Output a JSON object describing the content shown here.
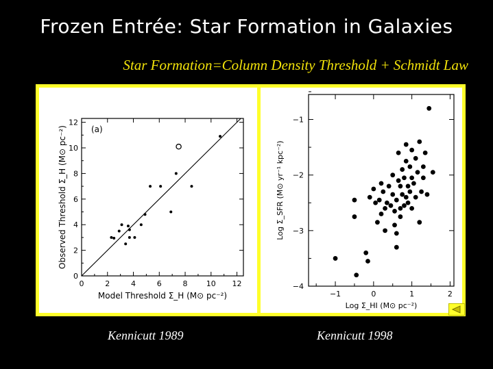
{
  "slide": {
    "title": "Frozen Entrée: Star Formation in Galaxies",
    "subtitle": "Star Formation=Column Density Threshold + Schmidt Law",
    "captions": [
      "Kennicutt 1989",
      "Kennicutt 1998"
    ],
    "nav_icon": "back-arrow-icon"
  },
  "chart_data": [
    {
      "type": "scatter",
      "panel_label": "(a)",
      "xlabel": "Model Threshold Σ_H (M⊙ pc⁻²)",
      "ylabel": "Observed Threshold Σ_H (M⊙ pc⁻²)",
      "xlim": [
        0,
        12.5
      ],
      "ylim": [
        0,
        12.3
      ],
      "xticks": [
        0,
        2,
        4,
        6,
        8,
        10,
        12
      ],
      "yticks": [
        0,
        2,
        4,
        6,
        8,
        10,
        12
      ],
      "reference_line": "y = x",
      "points": [
        {
          "x": 2.3,
          "y": 3.0
        },
        {
          "x": 2.5,
          "y": 2.95
        },
        {
          "x": 2.9,
          "y": 3.5
        },
        {
          "x": 3.1,
          "y": 4.0
        },
        {
          "x": 3.4,
          "y": 2.5
        },
        {
          "x": 3.6,
          "y": 3.9
        },
        {
          "x": 3.7,
          "y": 3.0
        },
        {
          "x": 3.7,
          "y": 3.6
        },
        {
          "x": 4.1,
          "y": 3.0
        },
        {
          "x": 4.6,
          "y": 4.0
        },
        {
          "x": 4.9,
          "y": 4.8
        },
        {
          "x": 5.3,
          "y": 7.0
        },
        {
          "x": 6.1,
          "y": 7.0
        },
        {
          "x": 6.9,
          "y": 5.0
        },
        {
          "x": 7.3,
          "y": 8.0
        },
        {
          "x": 8.5,
          "y": 7.0
        },
        {
          "x": 10.7,
          "y": 10.9
        }
      ],
      "open_points": [
        {
          "x": 7.5,
          "y": 10.1
        }
      ]
    },
    {
      "type": "scatter",
      "xlabel": "Log Σ_HI (M⊙ pc⁻²)",
      "ylabel": "Log Σ_SFR (M⊙ yr⁻¹ kpc⁻²)",
      "xlim": [
        -1.7,
        2.1
      ],
      "ylim": [
        -4.0,
        -0.55
      ],
      "xticks": [
        -1,
        0,
        1,
        2
      ],
      "yticks": [
        -1,
        -2,
        -3,
        -4
      ],
      "points": [
        {
          "x": -1.0,
          "y": -3.5
        },
        {
          "x": -0.5,
          "y": -2.45
        },
        {
          "x": -0.5,
          "y": -2.75
        },
        {
          "x": -0.45,
          "y": -3.8
        },
        {
          "x": -0.2,
          "y": -3.4
        },
        {
          "x": -0.15,
          "y": -3.55
        },
        {
          "x": -0.1,
          "y": -2.4
        },
        {
          "x": 0.0,
          "y": -2.25
        },
        {
          "x": 0.05,
          "y": -2.5
        },
        {
          "x": 0.1,
          "y": -2.85
        },
        {
          "x": 0.15,
          "y": -2.45
        },
        {
          "x": 0.2,
          "y": -2.15
        },
        {
          "x": 0.2,
          "y": -2.7
        },
        {
          "x": 0.25,
          "y": -2.3
        },
        {
          "x": 0.3,
          "y": -2.6
        },
        {
          "x": 0.3,
          "y": -3.0
        },
        {
          "x": 0.35,
          "y": -2.5
        },
        {
          "x": 0.4,
          "y": -2.2
        },
        {
          "x": 0.45,
          "y": -2.55
        },
        {
          "x": 0.5,
          "y": -2.0
        },
        {
          "x": 0.5,
          "y": -2.35
        },
        {
          "x": 0.55,
          "y": -2.65
        },
        {
          "x": 0.55,
          "y": -2.9
        },
        {
          "x": 0.6,
          "y": -2.45
        },
        {
          "x": 0.6,
          "y": -3.3
        },
        {
          "x": 0.6,
          "y": -3.05
        },
        {
          "x": 0.65,
          "y": -1.6
        },
        {
          "x": 0.65,
          "y": -2.1
        },
        {
          "x": 0.7,
          "y": -2.2
        },
        {
          "x": 0.7,
          "y": -2.75
        },
        {
          "x": 0.7,
          "y": -2.6
        },
        {
          "x": 0.75,
          "y": -1.9
        },
        {
          "x": 0.75,
          "y": -2.35
        },
        {
          "x": 0.8,
          "y": -2.05
        },
        {
          "x": 0.8,
          "y": -2.55
        },
        {
          "x": 0.85,
          "y": -1.45
        },
        {
          "x": 0.85,
          "y": -1.75
        },
        {
          "x": 0.85,
          "y": -2.4
        },
        {
          "x": 0.9,
          "y": -2.2
        },
        {
          "x": 0.9,
          "y": -2.5
        },
        {
          "x": 0.95,
          "y": -1.85
        },
        {
          "x": 0.95,
          "y": -2.3
        },
        {
          "x": 1.0,
          "y": -1.55
        },
        {
          "x": 1.0,
          "y": -2.05
        },
        {
          "x": 1.0,
          "y": -2.6
        },
        {
          "x": 1.05,
          "y": -2.15
        },
        {
          "x": 1.1,
          "y": -1.7
        },
        {
          "x": 1.1,
          "y": -2.4
        },
        {
          "x": 1.15,
          "y": -1.95
        },
        {
          "x": 1.2,
          "y": -2.85
        },
        {
          "x": 1.2,
          "y": -1.4
        },
        {
          "x": 1.25,
          "y": -2.3
        },
        {
          "x": 1.3,
          "y": -1.85
        },
        {
          "x": 1.3,
          "y": -2.05
        },
        {
          "x": 1.35,
          "y": -1.6
        },
        {
          "x": 1.4,
          "y": -2.35
        },
        {
          "x": 1.55,
          "y": -1.95
        },
        {
          "x": 1.45,
          "y": -0.8
        }
      ]
    }
  ]
}
